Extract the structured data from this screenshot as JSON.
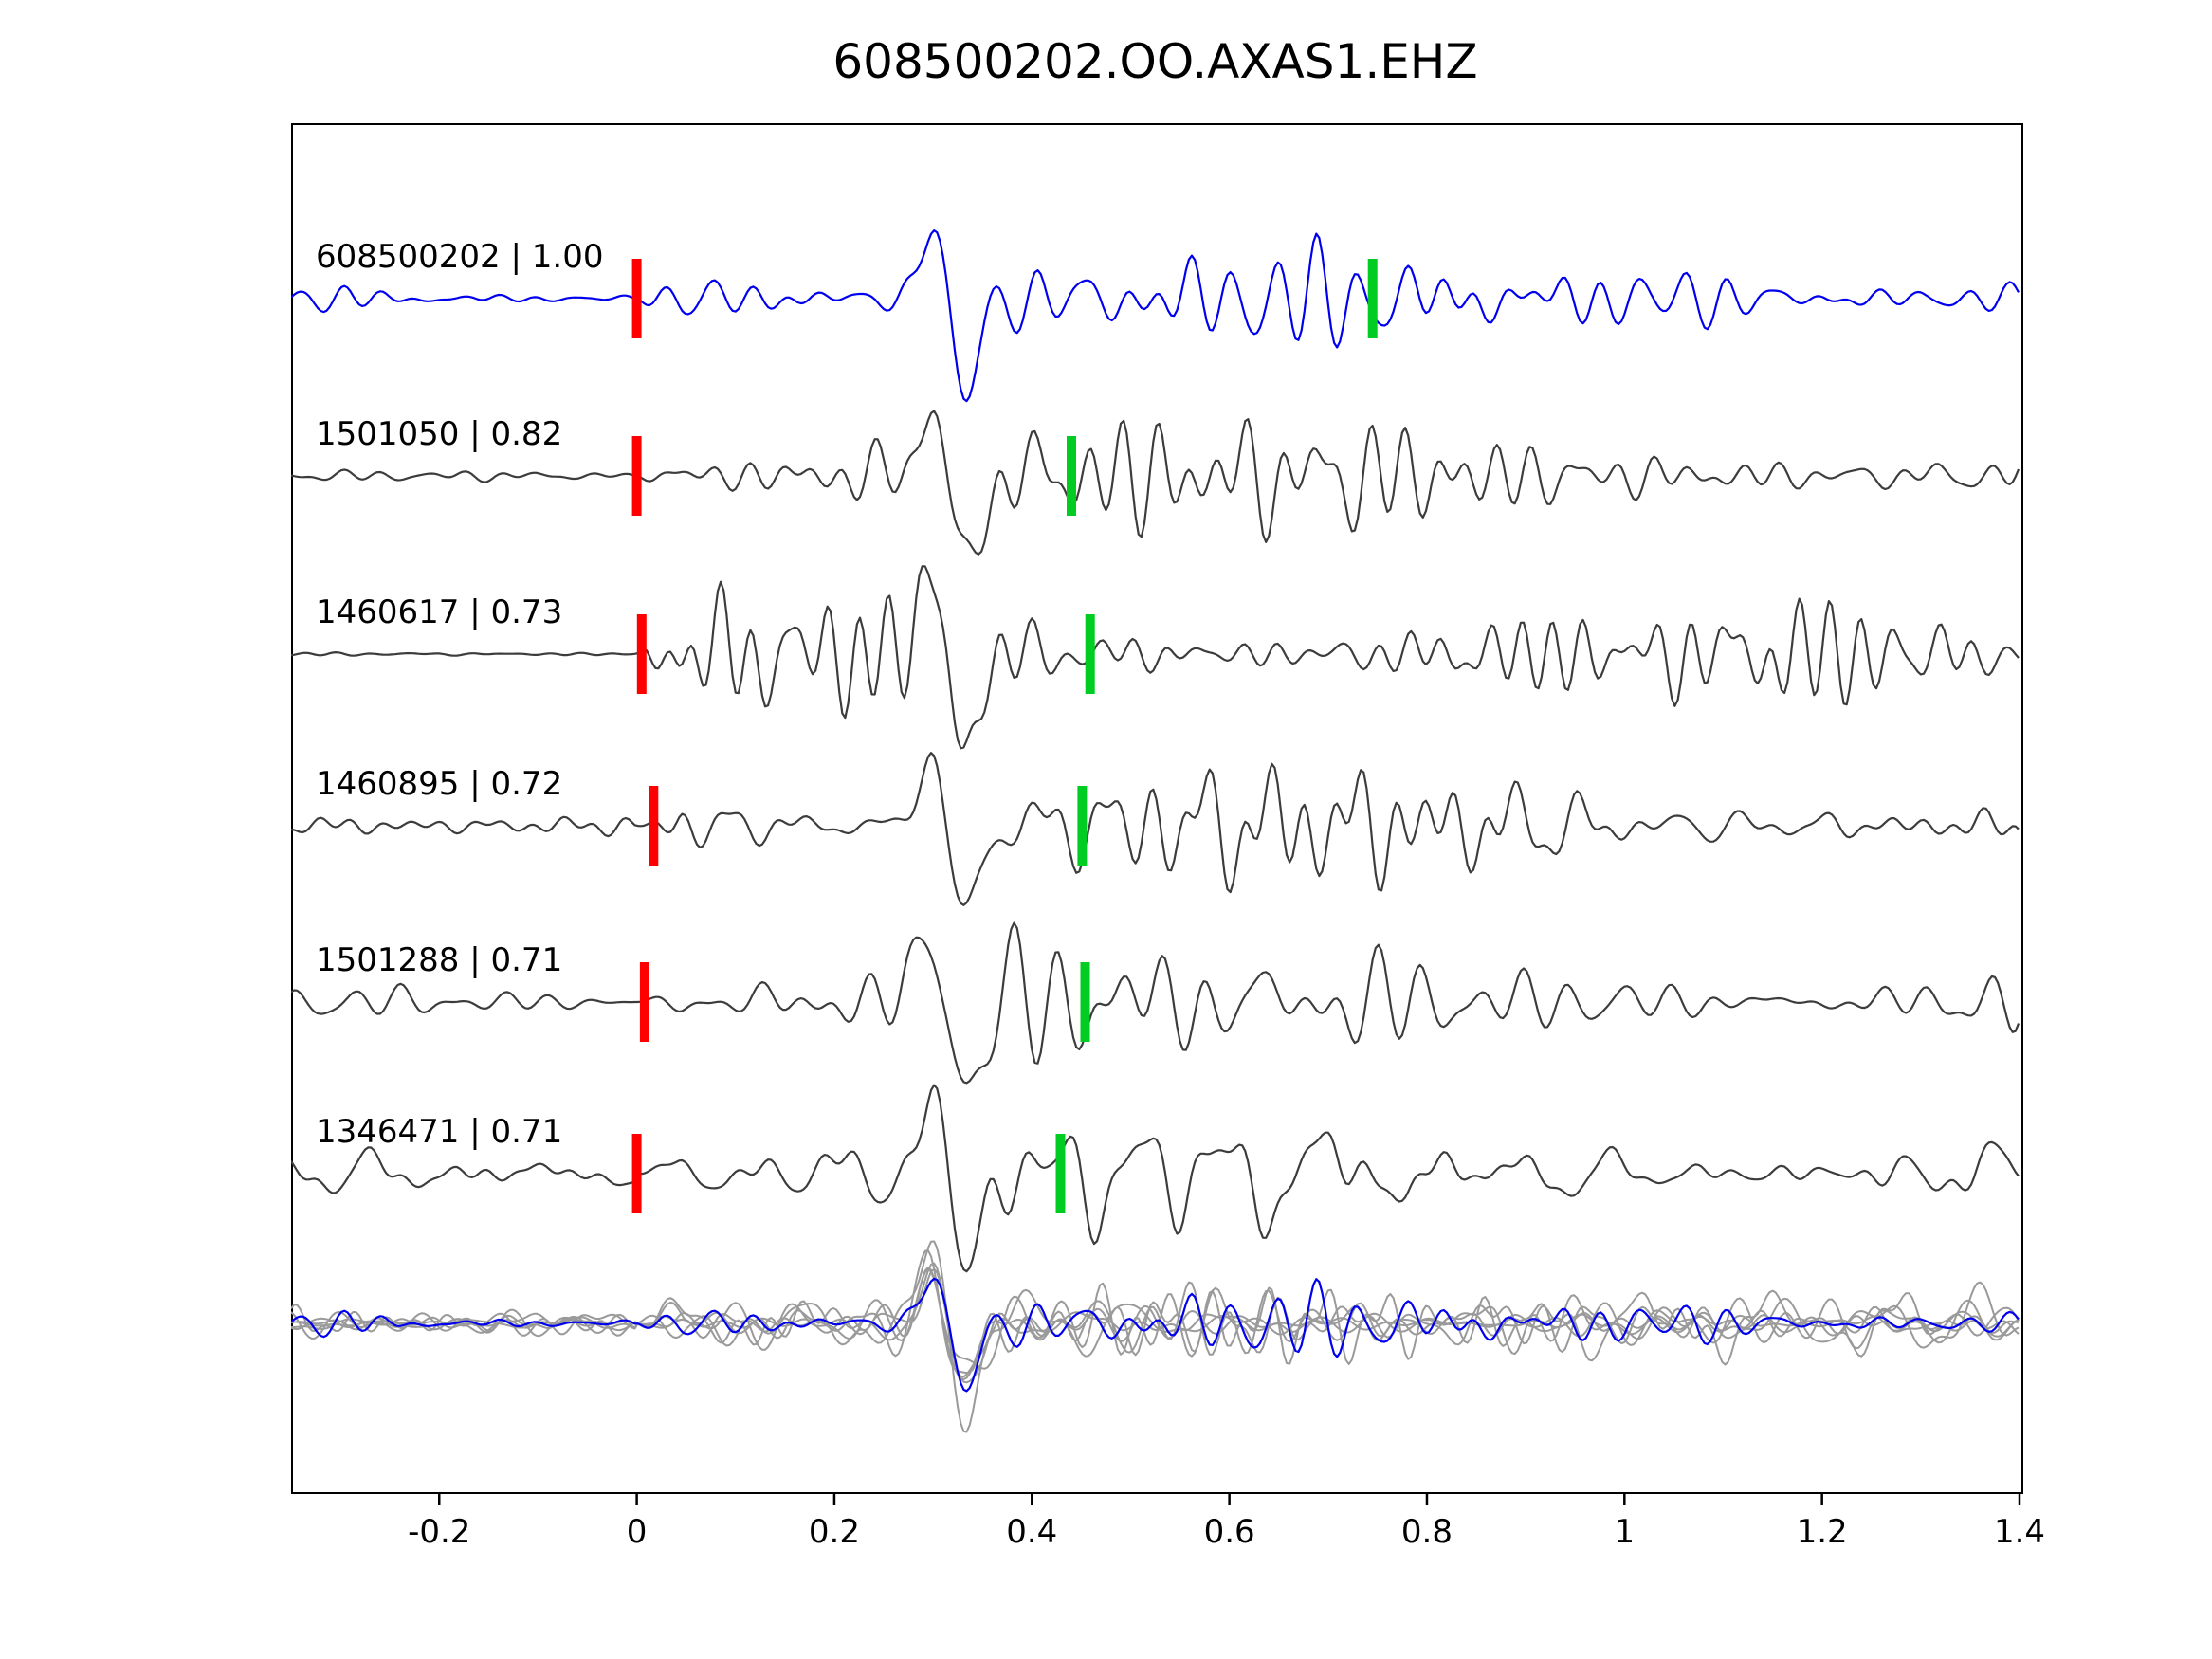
{
  "title": "608500202.OO.AXAS1.EHZ",
  "chart_data": {
    "type": "line",
    "title": "608500202.OO.AXAS1.EHZ",
    "description": "Template-matching waveform comparison: template trace (blue) and five detected event traces (dark gray), each with a red P-pick marker near time 0 and a green pick marker; bottom row shows all traces superimposed (gray) with the template highlighted in blue.",
    "xlim": [
      -0.35,
      1.4
    ],
    "xticks": [
      -0.2,
      0,
      0.2,
      0.4,
      0.6,
      0.8,
      1,
      1.2,
      1.4
    ],
    "xtick_labels": [
      "-0.2",
      "0",
      "0.2",
      "0.4",
      "0.6",
      "0.8",
      "1",
      "1.2",
      "1.4"
    ],
    "xlabel": "",
    "ylabel": "",
    "grid": false,
    "legend": null,
    "colors": {
      "template_trace": "#0000ee",
      "detection_trace": "#3c3c3c",
      "overlay_trace": "#9a9a9a",
      "pick_red": "#ff0000",
      "pick_green": "#00cc22",
      "axis": "#000000"
    },
    "traces": [
      {
        "id": "608500202",
        "cc": "1.00",
        "label": "608500202 | 1.00",
        "role": "template",
        "red_pick_x": 0.0,
        "green_pick_x": 0.745
      },
      {
        "id": "1501050",
        "cc": "0.82",
        "label": "1501050 | 0.82",
        "role": "detection",
        "red_pick_x": 0.0,
        "green_pick_x": 0.44
      },
      {
        "id": "1460617",
        "cc": "0.73",
        "label": "1460617 | 0.73",
        "role": "detection",
        "red_pick_x": 0.005,
        "green_pick_x": 0.459
      },
      {
        "id": "1460895",
        "cc": "0.72",
        "label": "1460895 | 0.72",
        "role": "detection",
        "red_pick_x": 0.017,
        "green_pick_x": 0.451
      },
      {
        "id": "1501288",
        "cc": "0.71",
        "label": "1501288 | 0.71",
        "role": "detection",
        "red_pick_x": 0.008,
        "green_pick_x": 0.454
      },
      {
        "id": "1346471",
        "cc": "0.71",
        "label": "1346471 | 0.71",
        "role": "detection",
        "red_pick_x": 0.0,
        "green_pick_x": 0.429
      }
    ],
    "overlay_row": {
      "description": "all six traces superimposed and aligned",
      "gray_count": 6,
      "highlighted": "608500202"
    }
  }
}
